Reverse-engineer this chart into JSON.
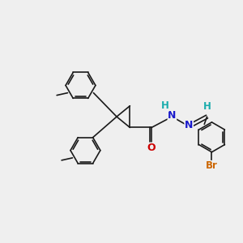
{
  "bg_color": "#efefef",
  "bond_color": "#1a1a1a",
  "bond_width": 1.2,
  "atom_labels": {
    "O": {
      "color": "#cc0000",
      "fontsize": 9
    },
    "N": {
      "color": "#1a1acc",
      "fontsize": 9
    },
    "Br": {
      "color": "#cc6600",
      "fontsize": 8.5
    },
    "H": {
      "color": "#1aacac",
      "fontsize": 8.5
    }
  },
  "fig_width": 3.0,
  "fig_height": 3.0,
  "dpi": 100,
  "xlim": [
    0,
    10
  ],
  "ylim": [
    0,
    10
  ]
}
